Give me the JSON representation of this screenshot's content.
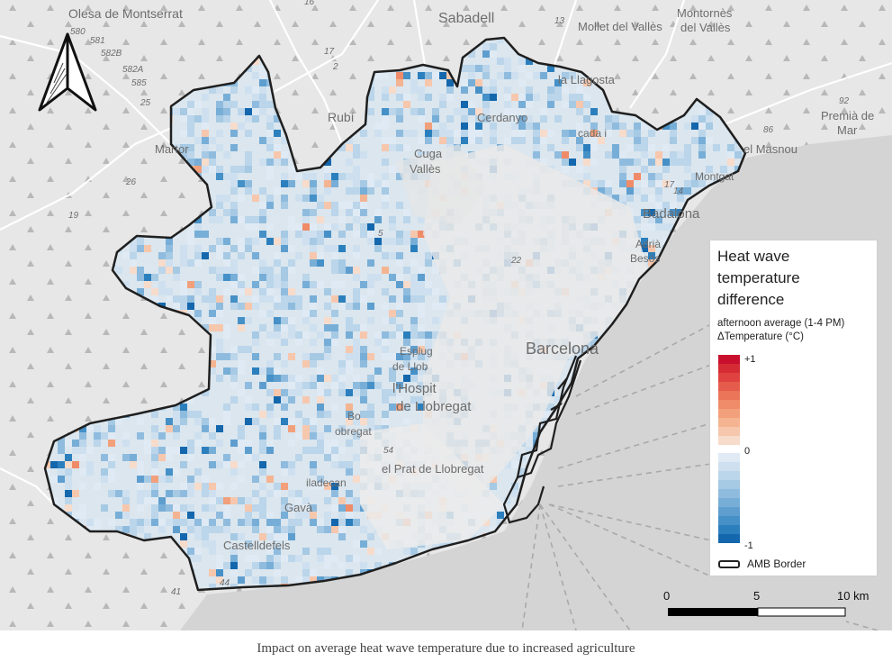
{
  "map": {
    "place_labels": {
      "olesa": "Olesa de Montserrat",
      "sabadell": "Sabadell",
      "mollet": "Mollet del Vallès",
      "montornes_1": "Montornès",
      "montornes_2": "del Vallès",
      "rubi": "Rubí",
      "martorell_partial": "Martor",
      "cerdanyola_partial": "Cerdanyo",
      "la_llagosta_partial": "la Llagosta",
      "cuga_1": "Cuga",
      "cuga_2": "Vallès",
      "montcada_1": "cada i",
      "premia_1": "Premià de",
      "premia_2": "Mar",
      "masnou_partial": "el Masnou",
      "montgat_partial": "Montgat",
      "badalona": "Badalona",
      "adria_partial": "Adrià",
      "besos_partial": "Besòs",
      "barcelona": "Barcelona",
      "esplugues_1": "Esplug",
      "esplugues_2": "de Llob",
      "cornella_1": "l'Hospit",
      "cornella_2": "de Llobregat",
      "boi_partial": "Bo",
      "llobregat_partial": "obregat",
      "prat": "el Prat de Llobregat",
      "viladecans_partial": "iladecan",
      "gava": "Gavà",
      "castelldefels": "Castelldefels"
    },
    "road_labels": [
      "580",
      "581",
      "582B",
      "582A",
      "585",
      "25",
      "26",
      "19",
      "17",
      "2",
      "5",
      "22",
      "16",
      "13",
      "14",
      "17",
      "92",
      "86",
      "54",
      "44",
      "41"
    ]
  },
  "north_arrow": {
    "icon": "north-arrow-icon"
  },
  "legend": {
    "title": "Heat wave temperature difference",
    "subtitle_1": "afternoon average (1-4 PM)",
    "subtitle_2": "ΔTemperature (°C)",
    "max_label": "+1",
    "zero_label": "0",
    "min_label": "-1",
    "warm_colors": [
      "#c8102e",
      "#d52b35",
      "#df4240",
      "#e65c4c",
      "#eb7558",
      "#ef8b68",
      "#f2a07b",
      "#f4b492",
      "#f6c7ad",
      "#f7dbcb"
    ],
    "cool_colors": [
      "#dfeaf4",
      "#cee0ef",
      "#bbd5ea",
      "#a6c9e4",
      "#8fbcde",
      "#77aed7",
      "#5e9ecf",
      "#4590c7",
      "#2c7fbd",
      "#1467ac"
    ],
    "border_label": "AMB Border"
  },
  "scale_bar": {
    "labels": [
      "0",
      "5",
      "10 km"
    ]
  },
  "caption": "Impact on average heat wave temperature due to increased agriculture"
}
